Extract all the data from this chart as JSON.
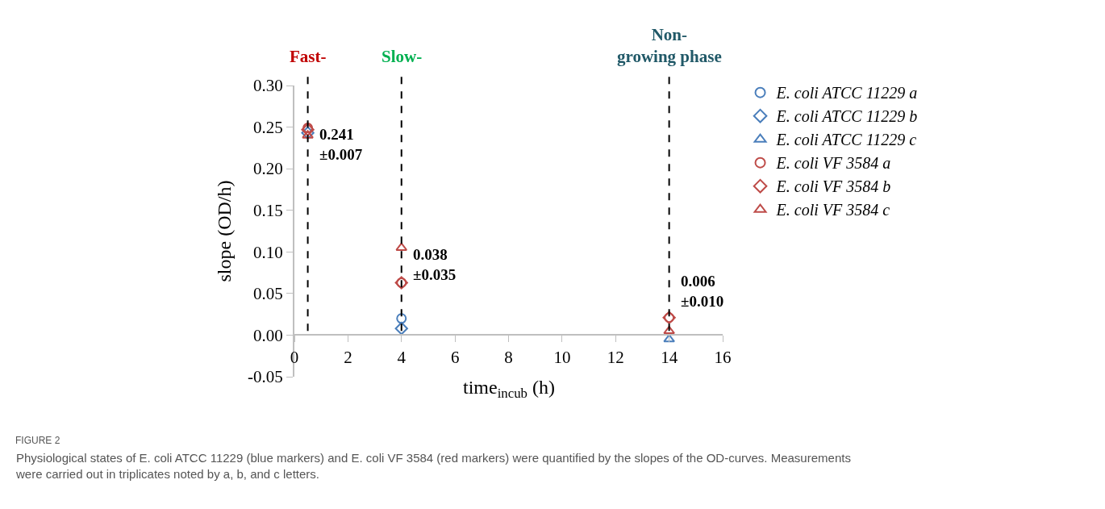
{
  "chart_data": {
    "type": "scatter",
    "xlabel": "time$_{incub}$ (h)",
    "ylabel": "slope (OD/h)",
    "xlim": [
      0,
      16
    ],
    "xticks": [
      0,
      2,
      4,
      6,
      8,
      10,
      12,
      14,
      16
    ],
    "ylim": [
      -0.05,
      0.3
    ],
    "yticks": [
      {
        "value": -0.05,
        "label": "-0.05"
      },
      {
        "value": 0,
        "label": "0.00"
      },
      {
        "value": 0.05,
        "label": "0.05"
      },
      {
        "value": 0.1,
        "label": "0.10"
      },
      {
        "value": 0.15,
        "label": "0.15"
      },
      {
        "value": 0.2,
        "label": "0.20"
      },
      {
        "value": 0.25,
        "label": "0.25"
      },
      {
        "value": 0.3,
        "label": "0.30"
      }
    ],
    "legend": "right",
    "x": [
      0.5,
      4,
      14
    ],
    "series": [
      {
        "name": "E. coli ATCC 11229 a",
        "color": "#4a7ebb",
        "marker": "circle",
        "values": [
          null,
          0.02,
          null
        ]
      },
      {
        "name": "E. coli ATCC 11229 b",
        "color": "#4a7ebb",
        "marker": "diamond",
        "values": [
          0.243,
          0.008,
          null
        ]
      },
      {
        "name": "E. coli ATCC 11229 c",
        "color": "#4a7ebb",
        "marker": "triangle",
        "values": [
          null,
          null,
          -0.005
        ]
      },
      {
        "name": "E. coli VF 3584 a",
        "color": "#be4b48",
        "marker": "circle",
        "values": [
          0.249,
          0.063,
          0.021
        ]
      },
      {
        "name": "E. coli VF 3584 b",
        "color": "#be4b48",
        "marker": "diamond",
        "values": [
          0.247,
          0.063,
          0.021
        ]
      },
      {
        "name": "E. coli VF 3584 c",
        "color": "#be4b48",
        "marker": "triangle",
        "values": [
          0.24,
          0.105,
          0.005
        ]
      }
    ],
    "ref_lines": [
      {
        "axis": "x",
        "value": 0.5,
        "label": "Fast-",
        "color": "#000000",
        "line_style": "dashed"
      },
      {
        "axis": "x",
        "value": 4,
        "label": "Slow-",
        "color": "#000000",
        "line_style": "dashed"
      },
      {
        "axis": "x",
        "value": 14,
        "label": "Non-\ngrowing phase",
        "color": "#000000",
        "line_style": "dashed"
      }
    ],
    "annotations": [
      {
        "text": "0.241\n±0.007",
        "x": 0.5,
        "y": 0.241
      },
      {
        "text": "0.038\n±0.035",
        "x": 4,
        "y": 0.038
      },
      {
        "text": "0.006\n±0.010",
        "x": 14,
        "y": 0.006
      },
      "FIGURE 2",
      "Physiological states of E. coli ATCC 11229 (blue markers) and E. coli VF 3584 (red markers) were quantified by the slopes of the OD-curves. Measurements\nwere carried out in triplicates noted by a, b, and c letters."
    ]
  }
}
